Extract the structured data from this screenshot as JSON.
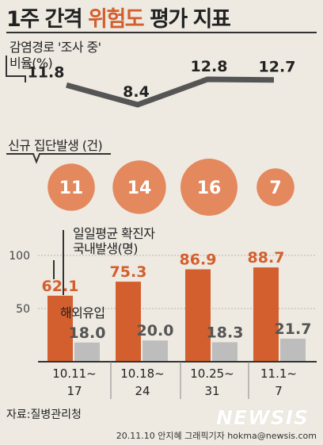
{
  "header": {
    "title_prefix": "1주 간격",
    "title_highlight": "위험도",
    "title_suffix": "평가 지표"
  },
  "labels": {
    "unknown_ratio_line1": "감염경로 '조사 중'",
    "unknown_ratio_line2": "비율(%)",
    "cluster_label": "신규 집단발생 (건)",
    "domestic_line1": "일일평균 확진자",
    "domestic_line2": "국내발생(명)",
    "overseas": "해외유입"
  },
  "footer": {
    "source": "자료:질병관리청",
    "watermark": "NEWSIS",
    "credit": "20.11.10 안지혜 그래픽기자 hokma@newsis.com"
  },
  "colors": {
    "accent": "#d35f2e",
    "line": "#555555",
    "circle": "#e4885e",
    "domestic_bar": "#d35f2e",
    "overseas_bar": "#bdbdbd"
  },
  "chart_data": [
    {
      "type": "line",
      "title": "감염경로 '조사 중' 비율(%)",
      "categories": [
        "10.11~17",
        "10.18~24",
        "10.25~31",
        "11.1~7"
      ],
      "values": [
        11.8,
        8.4,
        12.8,
        12.7
      ],
      "value_labels": [
        "11.8",
        "8.4",
        "12.8",
        "12.7"
      ]
    },
    {
      "type": "bubble",
      "title": "신규 집단발생 (건)",
      "categories": [
        "10.11~17",
        "10.18~24",
        "10.25~31",
        "11.1~7"
      ],
      "values": [
        11,
        14,
        16,
        7
      ],
      "value_labels": [
        "11",
        "14",
        "16",
        "7"
      ]
    },
    {
      "type": "bar",
      "categories": [
        "10.11~17",
        "10.18~24",
        "10.25~31",
        "11.1~7"
      ],
      "category_labels": [
        [
          "10.11~",
          "17"
        ],
        [
          "10.18~",
          "24"
        ],
        [
          "10.25~",
          "31"
        ],
        [
          "11.1~",
          "7"
        ]
      ],
      "series": [
        {
          "name": "일일평균 확진자 국내발생(명)",
          "values": [
            62.1,
            75.3,
            86.9,
            88.7
          ],
          "value_labels": [
            "62.1",
            "75.3",
            "86.9",
            "88.7"
          ]
        },
        {
          "name": "해외유입",
          "values": [
            18.0,
            20.0,
            18.3,
            21.7
          ],
          "value_labels": [
            "18.0",
            "20.0",
            "18.3",
            "21.7"
          ]
        }
      ],
      "yticks": [
        50,
        100
      ],
      "ytick_labels": [
        "50",
        "100"
      ],
      "ylim": [
        0,
        100
      ],
      "grid": true
    }
  ]
}
